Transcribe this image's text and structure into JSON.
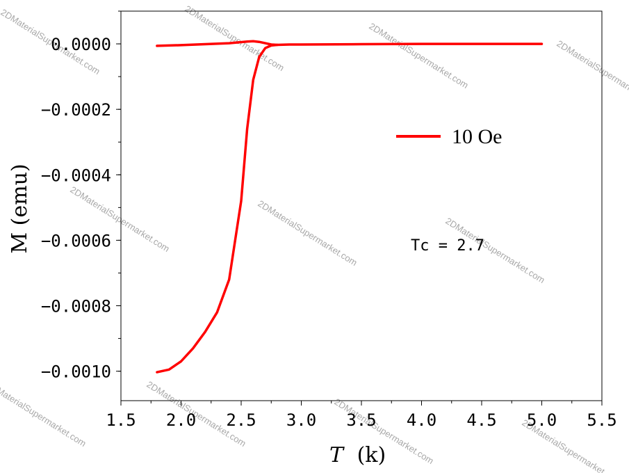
{
  "chart_data": {
    "type": "line",
    "title": "",
    "xlabel": "T",
    "xlabel_unit": "(k)",
    "ylabel": "M (emu)",
    "xlim": [
      1.5,
      5.5
    ],
    "ylim": [
      -0.00109,
      0.0001
    ],
    "x_ticks": [
      1.5,
      2.0,
      2.5,
      3.0,
      3.5,
      4.0,
      4.5,
      5.0,
      5.5
    ],
    "x_tick_labels": [
      "1.5",
      "2.0",
      "2.5",
      "3.0",
      "3.5",
      "4.0",
      "4.5",
      "5.0",
      "5.5"
    ],
    "y_ticks": [
      0.0,
      -0.0002,
      -0.0004,
      -0.0006,
      -0.0008,
      -0.001
    ],
    "y_tick_labels": [
      "0.0000",
      "−0.0002",
      "−0.0004",
      "−0.0006",
      "−0.0008",
      "−0.0010"
    ],
    "grid": false,
    "legend_position": "right",
    "series": [
      {
        "name": "10 Oe",
        "color": "#ff0000",
        "segments": [
          {
            "x": [
              1.8,
              1.9,
              2.0,
              2.1,
              2.2,
              2.3,
              2.4,
              2.5,
              2.55,
              2.6,
              2.65,
              2.7,
              2.75,
              2.8,
              2.9,
              3.0,
              3.5,
              4.0,
              4.5,
              5.0
            ],
            "y": [
              -0.001003,
              -0.000995,
              -0.00097,
              -0.00093,
              -0.00088,
              -0.00082,
              -0.00072,
              -0.00048,
              -0.00026,
              -0.00011,
              -4e-05,
              -1.3e-05,
              -5e-06,
              -3e-06,
              -2e-06,
              -2e-06,
              -1e-06,
              0.0,
              0.0,
              0.0
            ]
          },
          {
            "x": [
              1.8,
              2.0,
              2.2,
              2.4,
              2.55,
              2.6,
              2.65,
              2.7,
              2.75,
              2.8
            ],
            "y": [
              -6e-06,
              -4e-06,
              -1e-06,
              2e-06,
              7e-06,
              8e-06,
              6e-06,
              2e-06,
              -2e-06,
              -3e-06
            ]
          }
        ]
      }
    ],
    "annotations": [
      {
        "text": "Tc = 2.7",
        "x": 3.9,
        "y": -0.00062
      }
    ]
  },
  "watermark": "2DMaterialSupermarket.com"
}
